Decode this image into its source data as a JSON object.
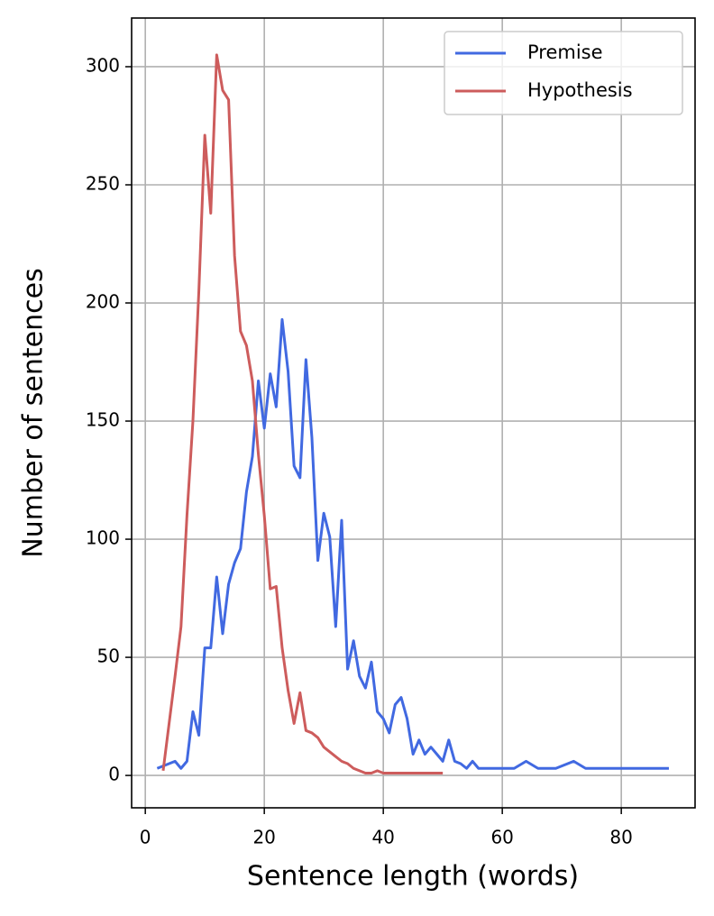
{
  "chart_data": {
    "type": "line",
    "x_label": "Sentence length (words)",
    "y_label": "Number of sentences",
    "xlim": [
      -2.3,
      92.4
    ],
    "ylim": [
      -13.7,
      320.6
    ],
    "xticks": [
      0,
      20,
      40,
      60,
      80
    ],
    "yticks": [
      0,
      50,
      100,
      150,
      200,
      250,
      300
    ],
    "grid": true,
    "legend": "upper right",
    "series": [
      {
        "name": "Premise",
        "color": "#4169e1",
        "x": [
          2,
          3,
          4,
          5,
          6,
          7,
          8,
          9,
          10,
          11,
          12,
          13,
          14,
          15,
          16,
          17,
          18,
          19,
          20,
          21,
          22,
          23,
          24,
          25,
          26,
          27,
          28,
          29,
          30,
          31,
          32,
          33,
          34,
          35,
          36,
          37,
          38,
          39,
          40,
          41,
          42,
          43,
          44,
          45,
          46,
          47,
          48,
          49,
          50,
          51,
          52,
          53,
          54,
          55,
          56,
          62,
          64,
          66,
          69,
          72,
          74,
          88
        ],
        "values": [
          3,
          4,
          5,
          6,
          3,
          6,
          27,
          17,
          54,
          54,
          84,
          60,
          81,
          90,
          96,
          120,
          135,
          167,
          147,
          170,
          156,
          193,
          171,
          131,
          126,
          176,
          143,
          91,
          111,
          101,
          63,
          108,
          45,
          57,
          42,
          37,
          48,
          27,
          24,
          18,
          30,
          33,
          24,
          9,
          15,
          9,
          12,
          9,
          6,
          15,
          6,
          5,
          3,
          6,
          3,
          3,
          6,
          3,
          3,
          6,
          3,
          3
        ]
      },
      {
        "name": "Hypothesis",
        "color": "#cd5c5c",
        "x": [
          3,
          4,
          5,
          6,
          7,
          8,
          9,
          10,
          11,
          12,
          13,
          14,
          15,
          16,
          17,
          18,
          19,
          20,
          21,
          22,
          23,
          24,
          25,
          26,
          27,
          28,
          29,
          30,
          31,
          32,
          33,
          34,
          35,
          36,
          37,
          38,
          39,
          40,
          41,
          42,
          43,
          44,
          45,
          46,
          47,
          48,
          49,
          50
        ],
        "values": [
          2,
          22,
          42,
          63,
          110,
          150,
          205,
          271,
          238,
          305,
          290,
          286,
          220,
          188,
          182,
          167,
          136,
          110,
          79,
          80,
          54,
          36,
          22,
          35,
          19,
          18,
          16,
          12,
          10,
          8,
          6,
          5,
          3,
          2,
          1,
          1,
          2,
          1,
          1,
          1,
          1,
          1,
          1,
          1,
          1,
          1,
          1,
          1
        ]
      }
    ]
  }
}
